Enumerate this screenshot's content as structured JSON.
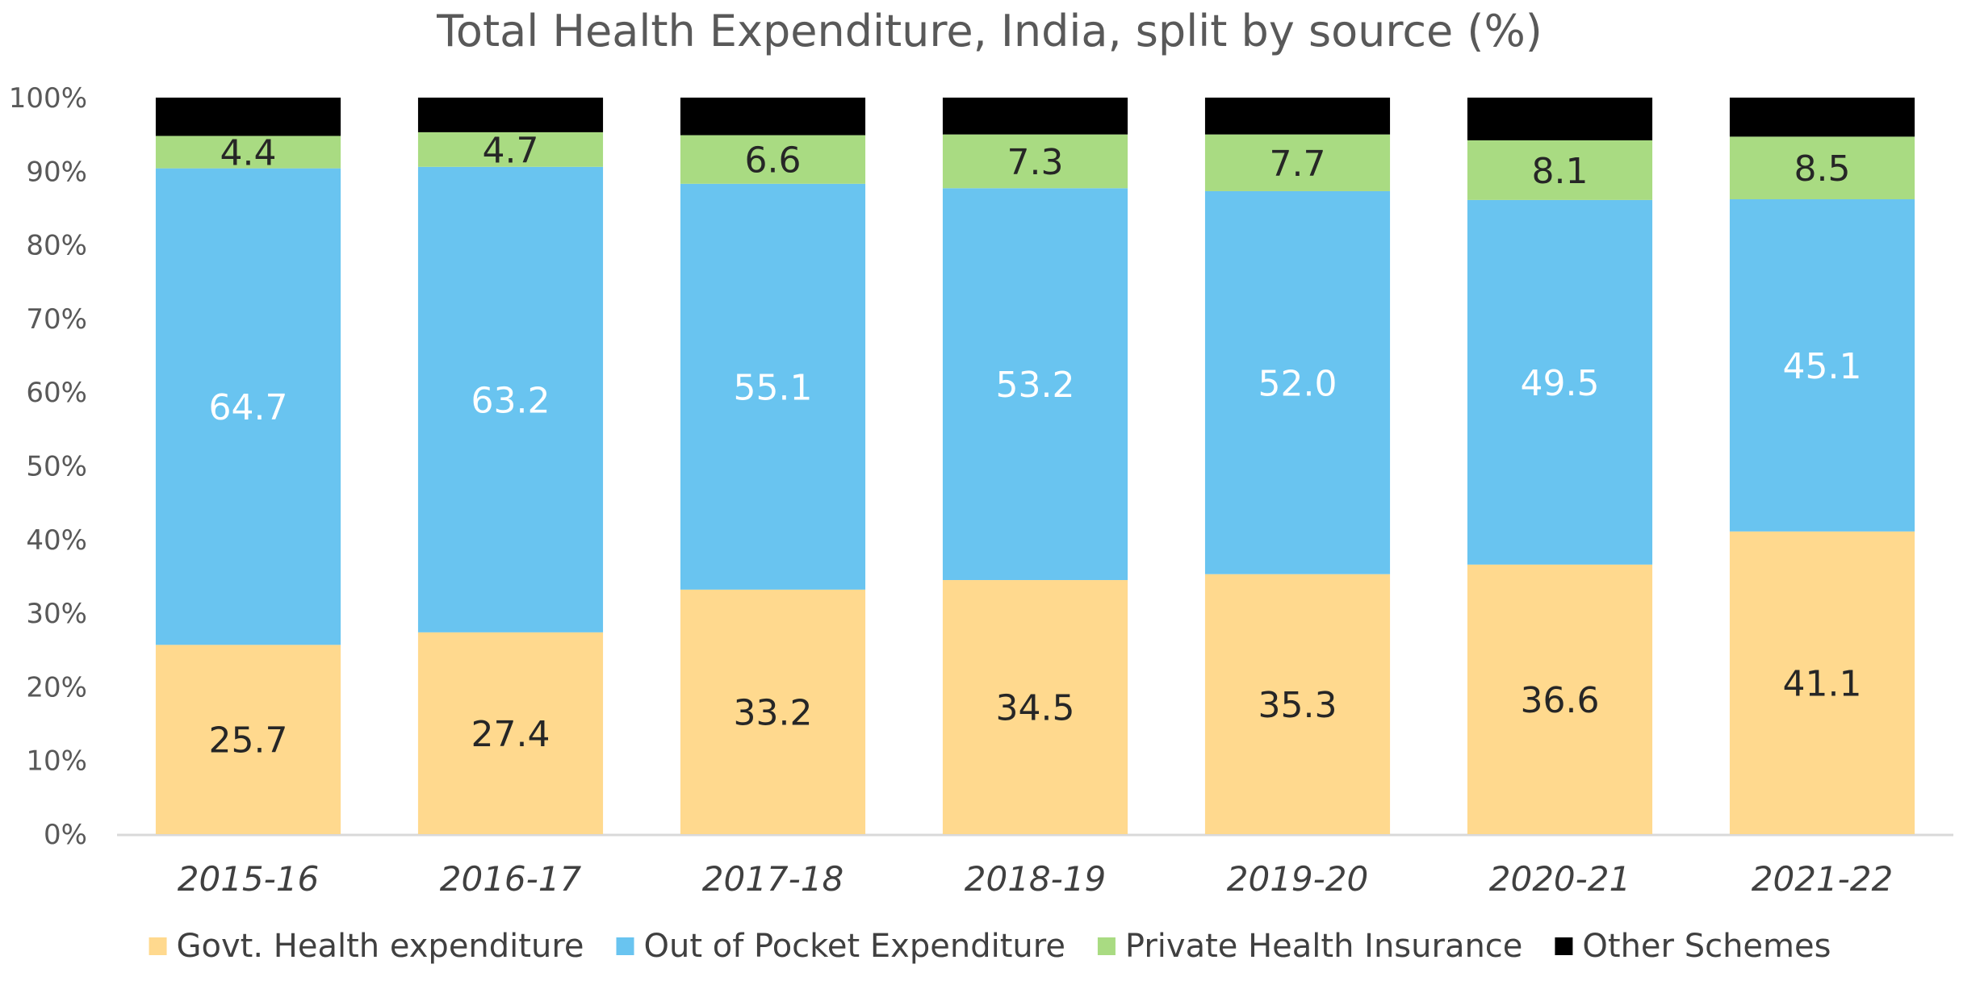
{
  "chart_data": {
    "type": "bar",
    "stacked": true,
    "title": "Total Health Expenditure, India, split by source (%)",
    "xlabel": "",
    "ylabel": "",
    "ylim": [
      0,
      100
    ],
    "yticks": [
      "0%",
      "10%",
      "20%",
      "30%",
      "40%",
      "50%",
      "60%",
      "70%",
      "80%",
      "90%",
      "100%"
    ],
    "categories": [
      "2015-16",
      "2016-17",
      "2017-18",
      "2018-19",
      "2019-20",
      "2020-21",
      "2021-22"
    ],
    "series": [
      {
        "name": "Govt. Health expenditure",
        "color": "#FFD98E",
        "label_color": "#262626",
        "values": [
          25.7,
          27.4,
          33.2,
          34.5,
          35.3,
          36.6,
          41.1
        ],
        "labels": [
          "25.7",
          "27.4",
          "33.2",
          "34.5",
          "35.3",
          "36.6",
          "41.1"
        ]
      },
      {
        "name": "Out of Pocket Expenditure",
        "color": "#69C4F0",
        "label_color": "#FFFFFF",
        "values": [
          64.7,
          63.2,
          55.1,
          53.2,
          52.0,
          49.5,
          45.1
        ],
        "labels": [
          "64.7",
          "63.2",
          "55.1",
          "53.2",
          "52.0",
          "49.5",
          "45.1"
        ]
      },
      {
        "name": "Private Health Insurance",
        "color": "#A9DB82",
        "label_color": "#262626",
        "values": [
          4.4,
          4.7,
          6.6,
          7.3,
          7.7,
          8.1,
          8.5
        ],
        "labels": [
          "4.4",
          "4.7",
          "6.6",
          "7.3",
          "7.7",
          "8.1",
          "8.5"
        ]
      },
      {
        "name": "Other Schemes",
        "color": "#000000",
        "label_color": "#FFFFFF",
        "values": [
          5.2,
          4.7,
          5.1,
          5.0,
          5.0,
          5.8,
          5.3
        ],
        "labels": [
          "",
          "",
          "",
          "",
          "",
          "",
          ""
        ]
      }
    ],
    "legend": "bottom",
    "grid": false,
    "axis_line_color": "#D9D9D9"
  }
}
